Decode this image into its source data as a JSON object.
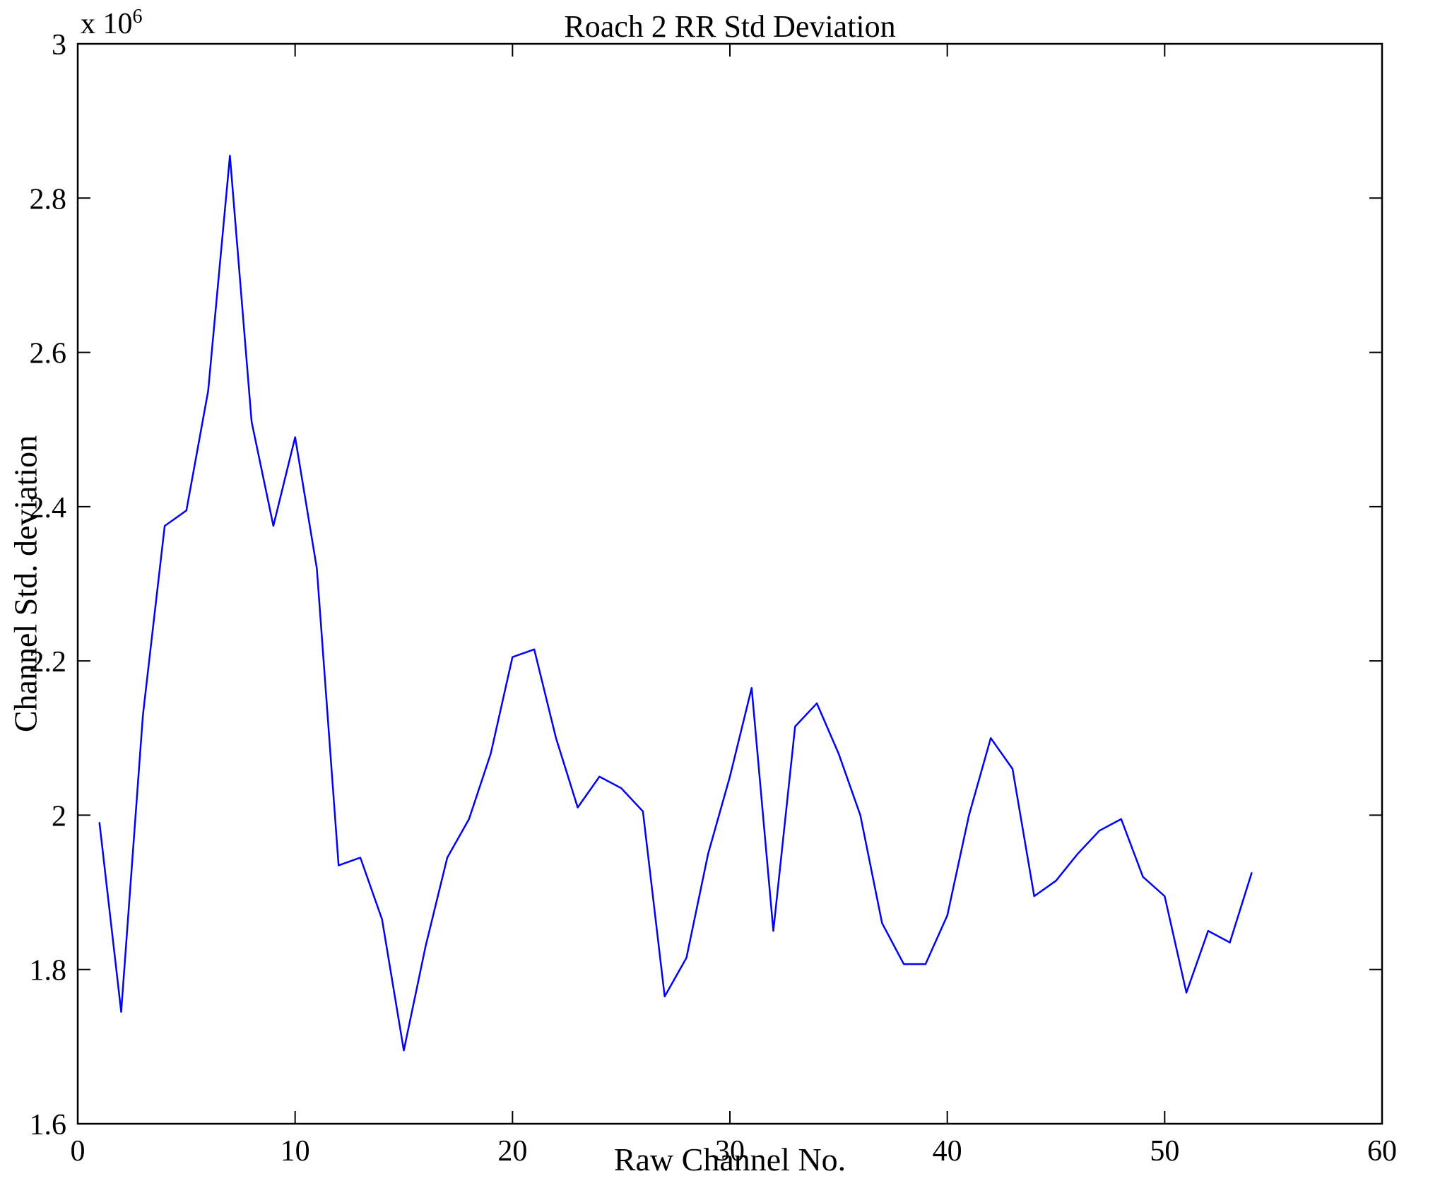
{
  "chart_data": {
    "type": "line",
    "title": "Roach 2 RR Std Deviation",
    "xlabel": "Raw Channel No.",
    "ylabel": "Channel Std. deviation",
    "multiplier": {
      "base": "x 10",
      "exp": "6"
    },
    "xlim": [
      0,
      60
    ],
    "ylim": [
      1.6,
      3
    ],
    "xticks": [
      0,
      10,
      20,
      30,
      40,
      50,
      60
    ],
    "yticks": [
      1.6,
      1.8,
      2,
      2.2,
      2.4,
      2.6,
      2.8,
      3
    ],
    "y_unit_multiplier": 1000000,
    "line_color": "#0000FF",
    "axis_color": "#000000",
    "grid": false,
    "legend": null,
    "x": [
      1,
      2,
      3,
      4,
      5,
      6,
      7,
      8,
      9,
      10,
      11,
      12,
      13,
      14,
      15,
      16,
      17,
      18,
      19,
      20,
      21,
      22,
      23,
      24,
      25,
      26,
      27,
      28,
      29,
      30,
      31,
      32,
      33,
      34,
      35,
      36,
      37,
      38,
      39,
      40,
      41,
      42,
      43,
      44,
      45,
      46,
      47,
      48,
      49,
      50,
      51,
      52,
      53,
      54
    ],
    "y": [
      1.99,
      1.745,
      2.13,
      2.375,
      2.395,
      2.55,
      2.855,
      2.51,
      2.375,
      2.49,
      2.32,
      1.935,
      1.945,
      1.865,
      1.695,
      1.83,
      1.945,
      1.995,
      2.08,
      2.205,
      2.215,
      2.1,
      2.01,
      2.05,
      2.035,
      2.005,
      1.765,
      1.815,
      1.95,
      2.05,
      2.165,
      1.85,
      2.115,
      2.145,
      2.08,
      2.0,
      1.86,
      1.807,
      1.807,
      1.87,
      2.0,
      2.1,
      2.06,
      1.895,
      1.915,
      1.95,
      1.98,
      1.995,
      1.92,
      1.895,
      1.77,
      1.85,
      1.835,
      1.925
    ]
  }
}
